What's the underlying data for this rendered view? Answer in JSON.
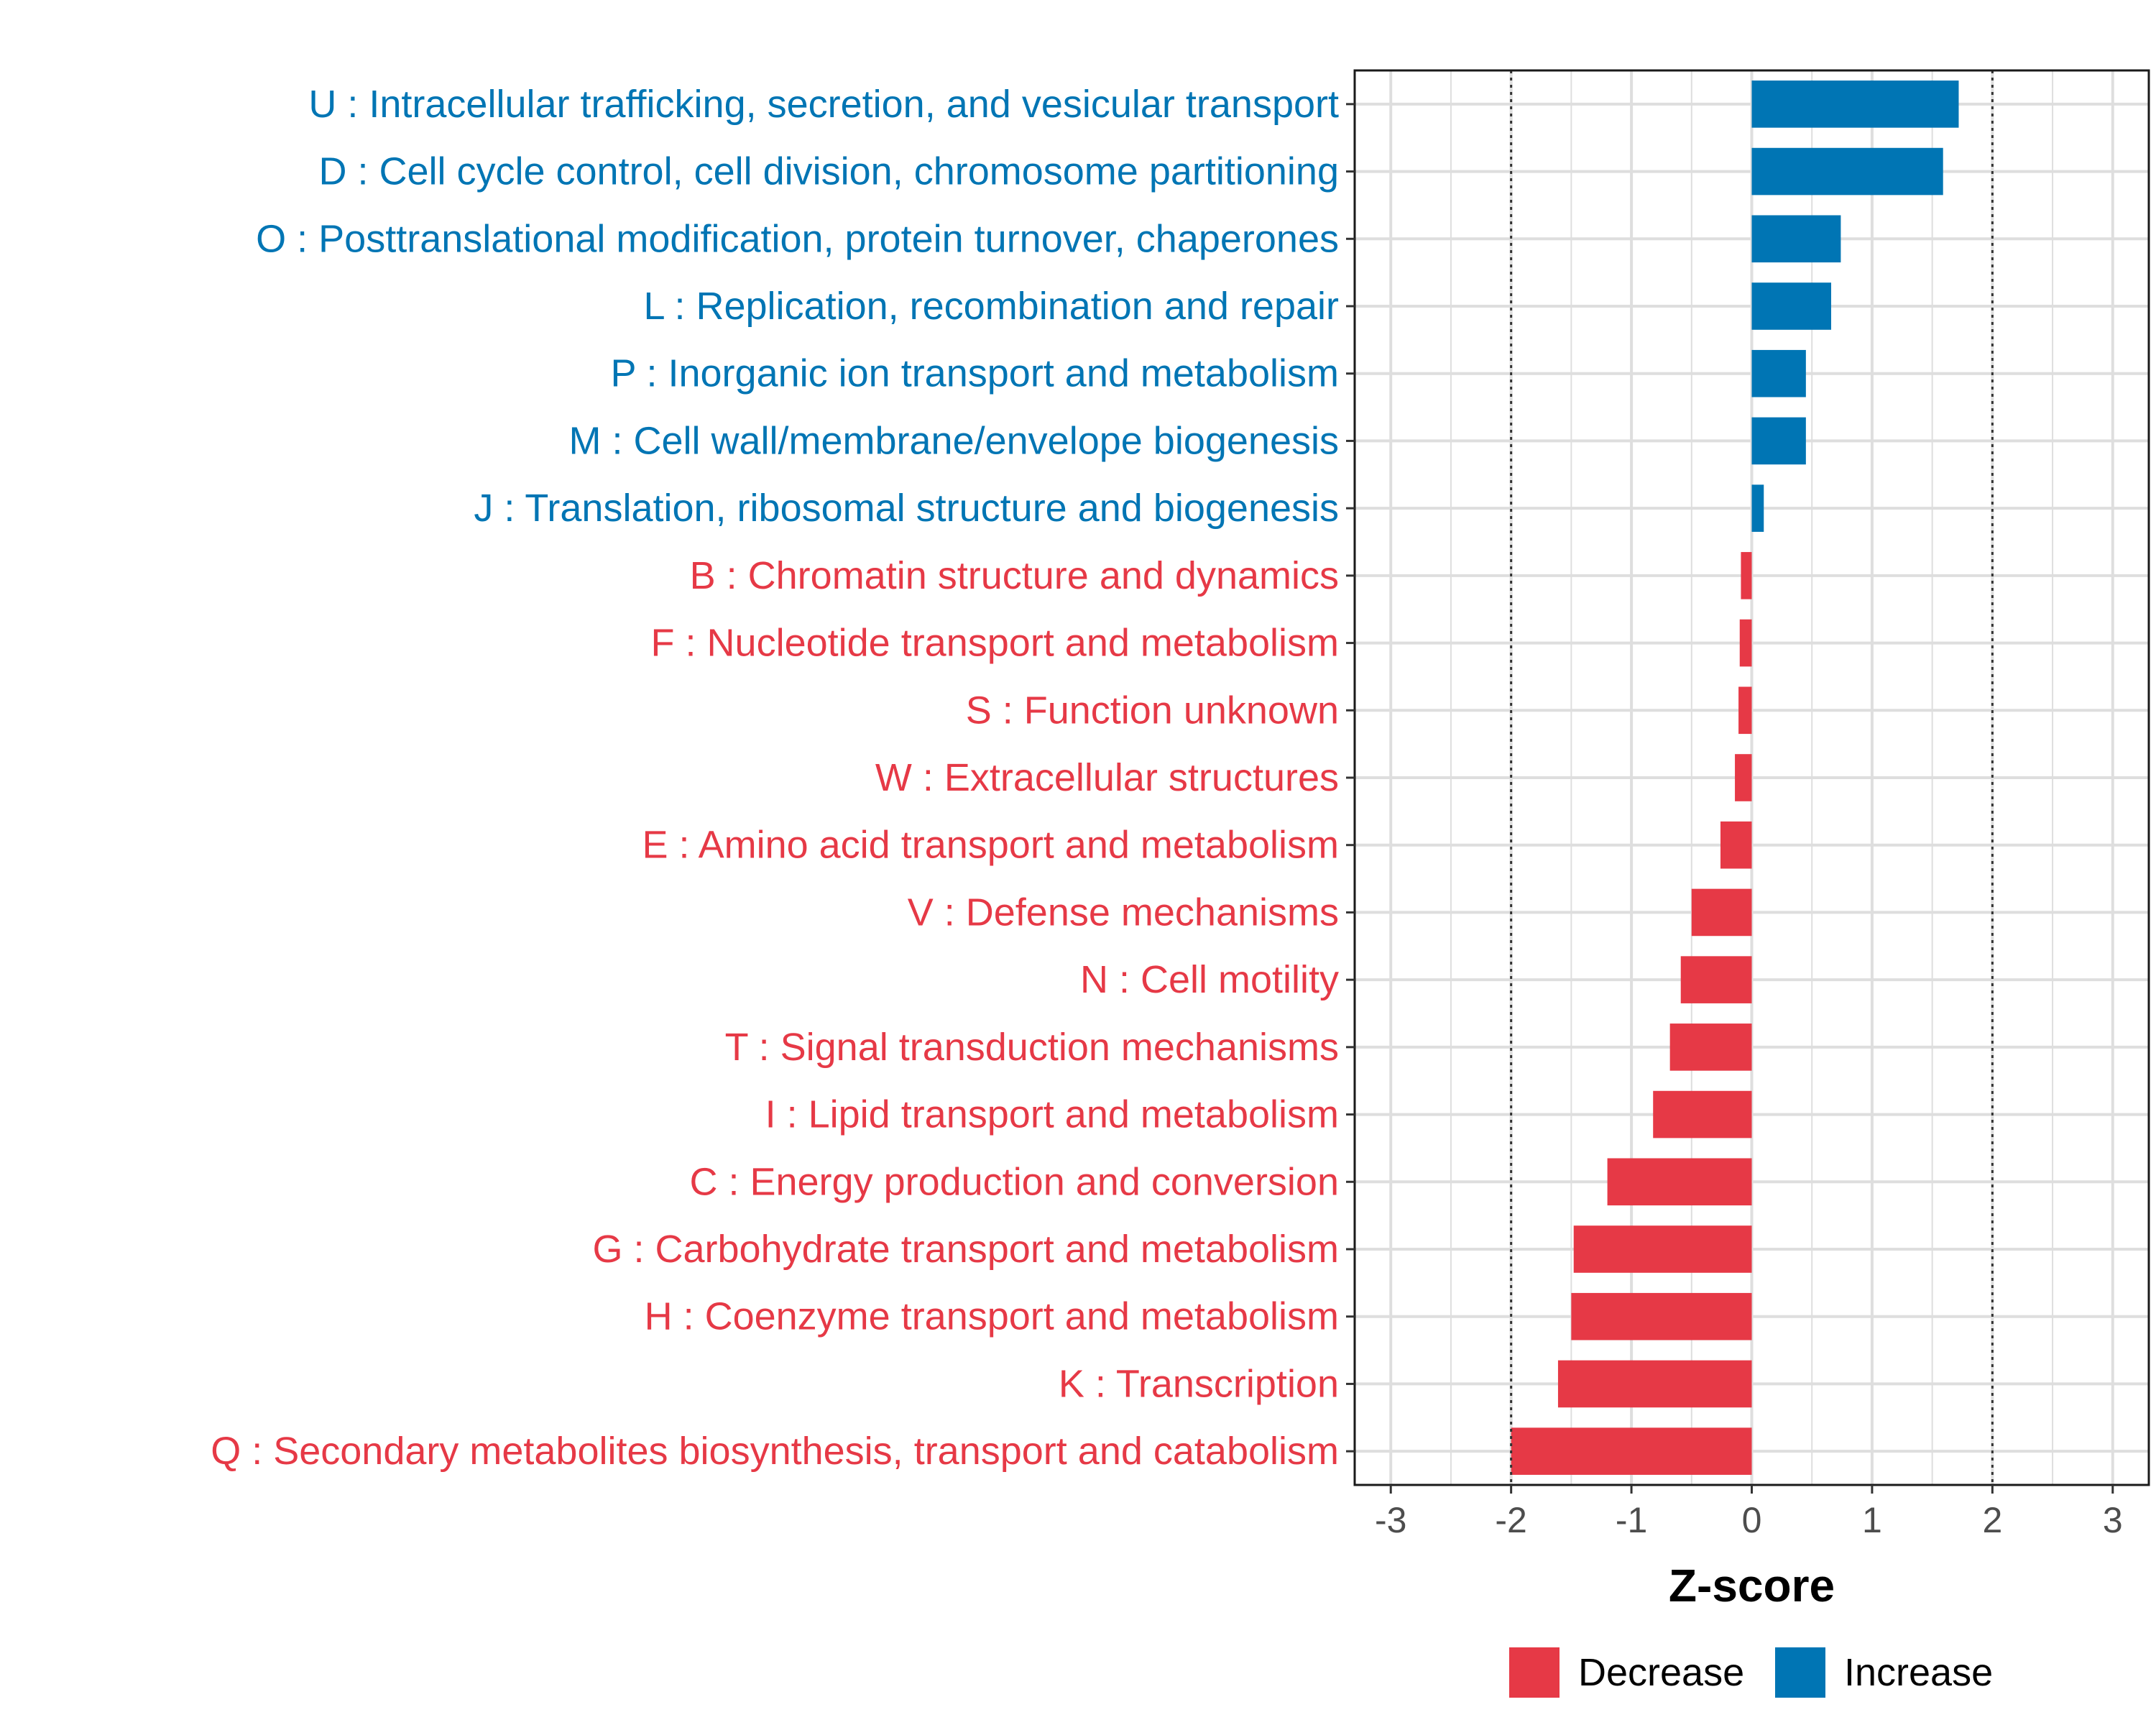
{
  "chart_data": {
    "type": "bar",
    "orientation": "horizontal",
    "title": "",
    "xlabel": "Z-score",
    "ylabel": "",
    "xlim": [
      -3.3,
      3.3
    ],
    "x_ticks": [
      -3,
      -2,
      -1,
      0,
      1,
      2,
      3
    ],
    "threshold_lines": [
      -2,
      2
    ],
    "grid": true,
    "legend_position": "bottom",
    "colors": {
      "Decrease": "#E63946",
      "Increase": "#0075B4"
    },
    "legend": [
      {
        "label": "Decrease",
        "color": "#E63946"
      },
      {
        "label": "Increase",
        "color": "#0075B4"
      }
    ],
    "bars": [
      {
        "label": "U : Intracellular trafficking, secretion, and vesicular transport",
        "value": 1.72,
        "group": "Increase"
      },
      {
        "label": "D : Cell cycle control, cell division, chromosome partitioning",
        "value": 1.59,
        "group": "Increase"
      },
      {
        "label": "O : Posttranslational modification, protein turnover, chaperones",
        "value": 0.74,
        "group": "Increase"
      },
      {
        "label": "L : Replication, recombination and repair",
        "value": 0.66,
        "group": "Increase"
      },
      {
        "label": "P : Inorganic ion transport and metabolism",
        "value": 0.45,
        "group": "Increase"
      },
      {
        "label": "M : Cell wall/membrane/envelope biogenesis",
        "value": 0.45,
        "group": "Increase"
      },
      {
        "label": "J : Translation, ribosomal structure and biogenesis",
        "value": 0.1,
        "group": "Increase"
      },
      {
        "label": "B : Chromatin structure and dynamics",
        "value": -0.09,
        "group": "Decrease"
      },
      {
        "label": "F : Nucleotide transport and metabolism",
        "value": -0.1,
        "group": "Decrease"
      },
      {
        "label": "S : Function unknown",
        "value": -0.11,
        "group": "Decrease"
      },
      {
        "label": "W : Extracellular structures",
        "value": -0.14,
        "group": "Decrease"
      },
      {
        "label": "E : Amino acid transport and metabolism",
        "value": -0.26,
        "group": "Decrease"
      },
      {
        "label": "V : Defense mechanisms",
        "value": -0.5,
        "group": "Decrease"
      },
      {
        "label": "N : Cell motility",
        "value": -0.59,
        "group": "Decrease"
      },
      {
        "label": "T : Signal transduction mechanisms",
        "value": -0.68,
        "group": "Decrease"
      },
      {
        "label": "I : Lipid transport and metabolism",
        "value": -0.82,
        "group": "Decrease"
      },
      {
        "label": "C : Energy production and conversion",
        "value": -1.2,
        "group": "Decrease"
      },
      {
        "label": "G : Carbohydrate transport and metabolism",
        "value": -1.48,
        "group": "Decrease"
      },
      {
        "label": "H : Coenzyme transport and metabolism",
        "value": -1.5,
        "group": "Decrease"
      },
      {
        "label": "K : Transcription",
        "value": -1.61,
        "group": "Decrease"
      },
      {
        "label": "Q : Secondary metabolites biosynthesis, transport and catabolism",
        "value": -2.0,
        "group": "Decrease"
      }
    ]
  }
}
